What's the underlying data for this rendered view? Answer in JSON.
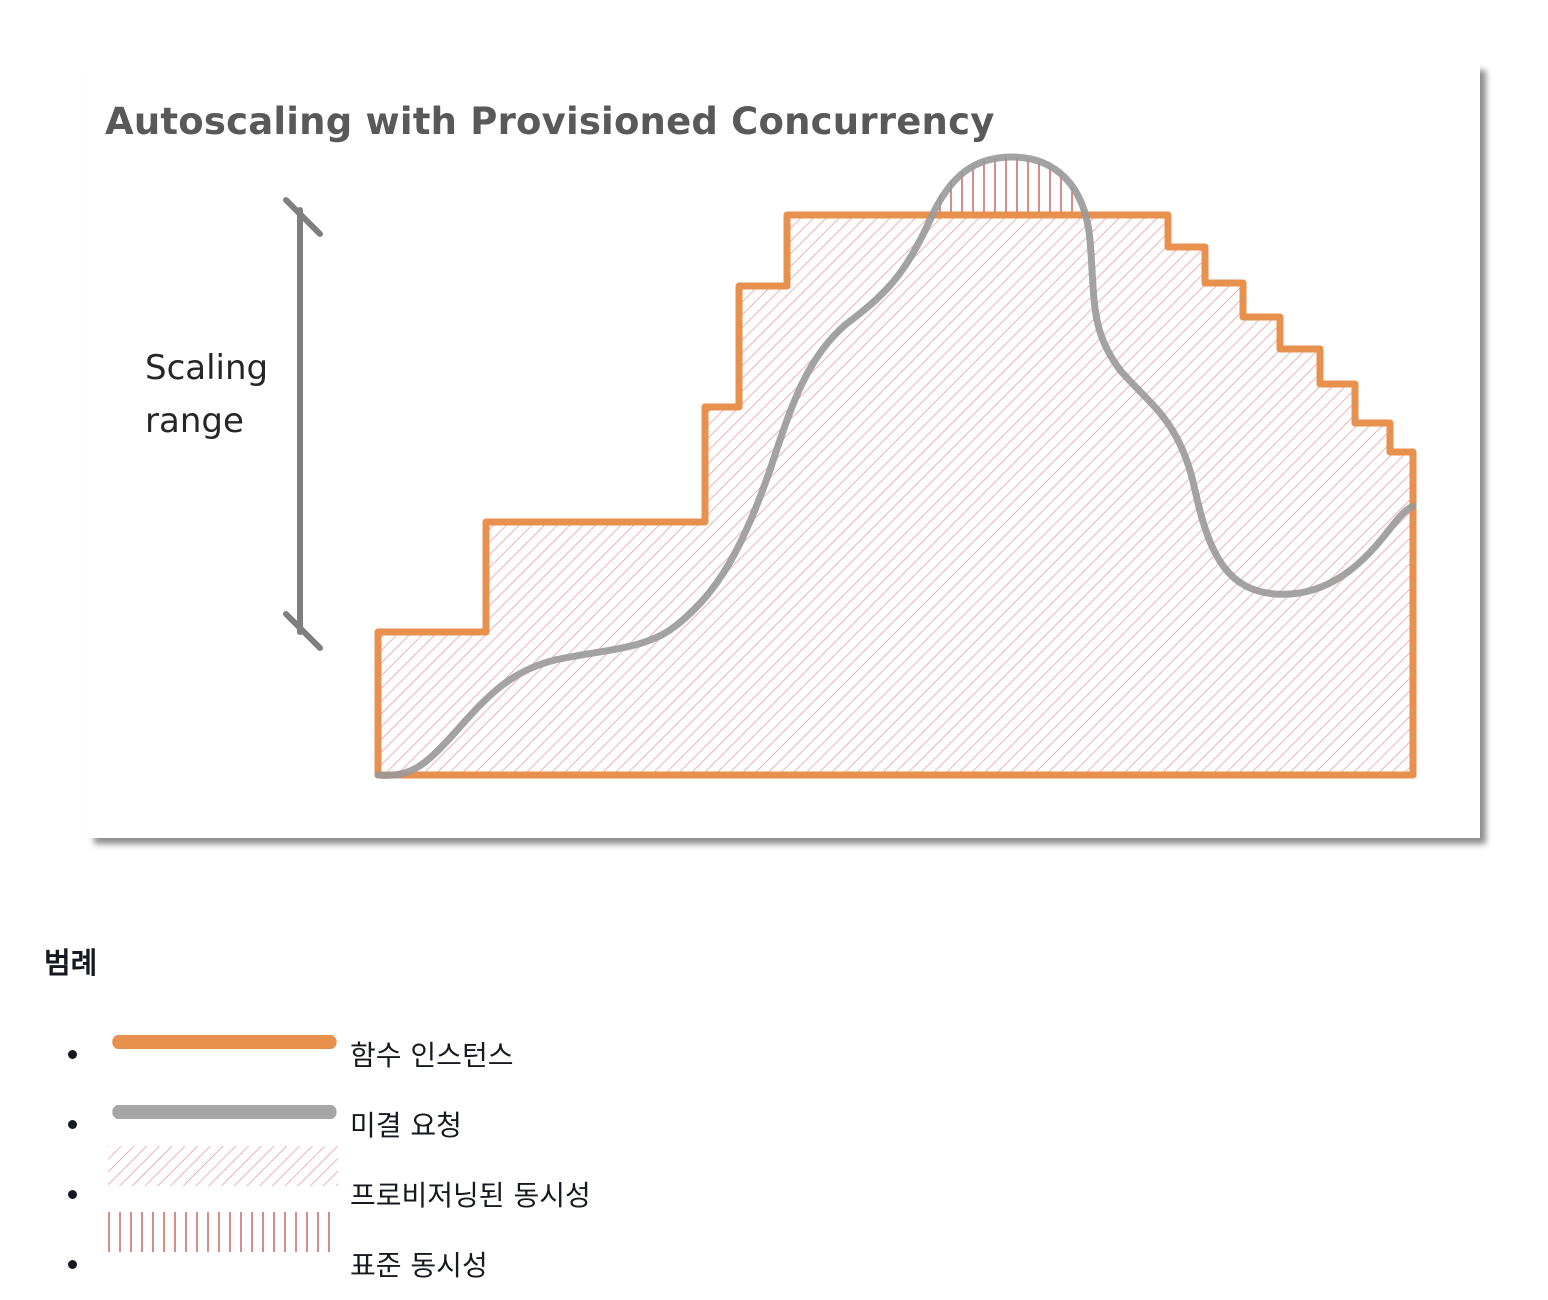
{
  "figure": {
    "title": "Autoscaling with Provisioned Concurrency",
    "scaling_range_label": "Scaling range",
    "colors": {
      "function_instances": "#e8914f",
      "open_requests": "#999999",
      "provisioned_hatch": "#e8a0a0",
      "standard_hatch": "#c0504d"
    }
  },
  "legend": {
    "heading": "범례",
    "items": [
      {
        "label": "함수 인스턴스",
        "swatch": "orange-line"
      },
      {
        "label": "미결 요청",
        "swatch": "gray-line"
      },
      {
        "label": "프로비저닝된 동시성",
        "swatch": "diagonal-hatch"
      },
      {
        "label": "표준 동시성",
        "swatch": "vertical-hatch"
      }
    ]
  }
}
